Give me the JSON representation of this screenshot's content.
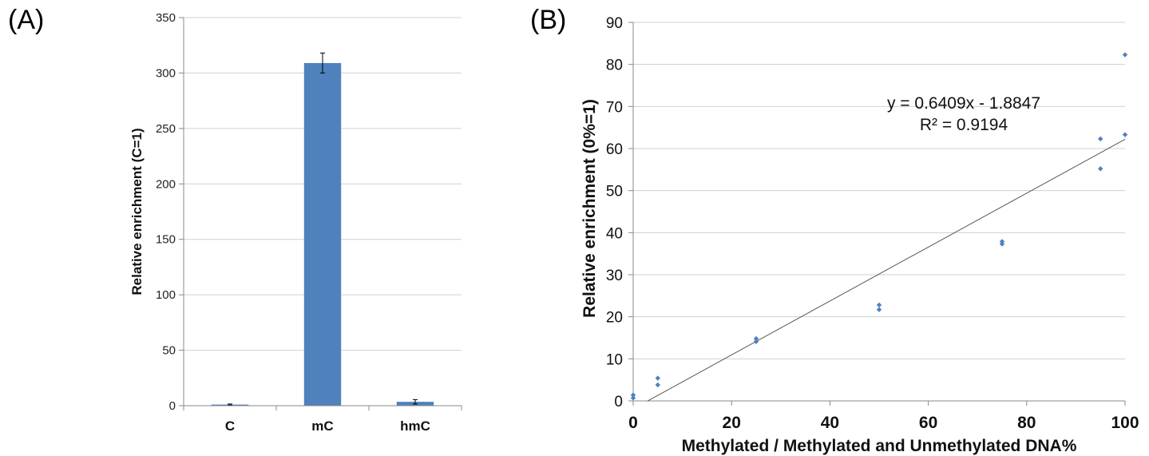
{
  "chart_data": [
    {
      "panel_label": "(A)",
      "type": "bar",
      "categories": [
        "C",
        "mC",
        "hmC"
      ],
      "values": [
        1,
        309,
        3.5
      ],
      "error": [
        0.5,
        9,
        2
      ],
      "bar_color": "#4F81BD",
      "title": "",
      "xlabel": "",
      "ylabel": "Relative enrichment (C=1)",
      "ylim": [
        0,
        350
      ],
      "yticks": [
        0,
        50,
        100,
        150,
        200,
        250,
        300,
        350
      ],
      "grid": true
    },
    {
      "panel_label": "(B)",
      "type": "scatter",
      "title": "",
      "xlabel": "Methylated / Methylated and Unmethylated DNA%",
      "ylabel": "Relative enrichment (0%=1)",
      "xlim": [
        0,
        100
      ],
      "ylim": [
        0,
        90
      ],
      "xticks": [
        0,
        20,
        40,
        60,
        80,
        100
      ],
      "yticks": [
        0,
        10,
        20,
        30,
        40,
        50,
        60,
        70,
        80,
        90
      ],
      "grid": true,
      "marker_color": "#4F81BD",
      "points": [
        {
          "x": 0,
          "y": 0.7
        },
        {
          "x": 0,
          "y": 1.4
        },
        {
          "x": 5,
          "y": 3.8
        },
        {
          "x": 5,
          "y": 5.4
        },
        {
          "x": 25,
          "y": 14.1
        },
        {
          "x": 25,
          "y": 14.8
        },
        {
          "x": 50,
          "y": 21.7
        },
        {
          "x": 50,
          "y": 22.8
        },
        {
          "x": 75,
          "y": 37.3
        },
        {
          "x": 75,
          "y": 37.9
        },
        {
          "x": 95,
          "y": 55.2
        },
        {
          "x": 95,
          "y": 62.3
        },
        {
          "x": 100,
          "y": 63.3
        },
        {
          "x": 100,
          "y": 82.3
        }
      ],
      "trendline": {
        "slope": 0.6409,
        "intercept": -1.8847,
        "x_range": [
          2.94,
          100
        ],
        "color": "#555555",
        "equation_text": "y = 0.6409x - 1.8847",
        "r2_text": "R² = 0.9194"
      }
    }
  ]
}
